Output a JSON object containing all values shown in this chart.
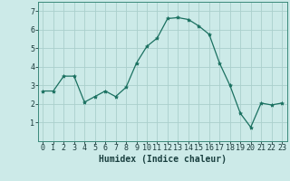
{
  "x": [
    0,
    1,
    2,
    3,
    4,
    5,
    6,
    7,
    8,
    9,
    10,
    11,
    12,
    13,
    14,
    15,
    16,
    17,
    18,
    19,
    20,
    21,
    22,
    23
  ],
  "y": [
    2.7,
    2.7,
    3.5,
    3.5,
    2.1,
    2.4,
    2.7,
    2.4,
    2.9,
    4.2,
    5.1,
    5.55,
    6.6,
    6.65,
    6.55,
    6.2,
    5.75,
    4.2,
    3.0,
    1.5,
    0.75,
    2.05,
    1.95,
    2.05
  ],
  "line_color": "#1a7060",
  "marker": "*",
  "marker_size": 3,
  "bg_color": "#cceae8",
  "grid_color": "#aacfcc",
  "xlabel": "Humidex (Indice chaleur)",
  "xlabel_fontsize": 7,
  "tick_fontsize": 6,
  "ylim": [
    0,
    7.5
  ],
  "xlim": [
    -0.5,
    23.5
  ],
  "yticks": [
    1,
    2,
    3,
    4,
    5,
    6,
    7
  ],
  "xticks": [
    0,
    1,
    2,
    3,
    4,
    5,
    6,
    7,
    8,
    9,
    10,
    11,
    12,
    13,
    14,
    15,
    16,
    17,
    18,
    19,
    20,
    21,
    22,
    23
  ]
}
